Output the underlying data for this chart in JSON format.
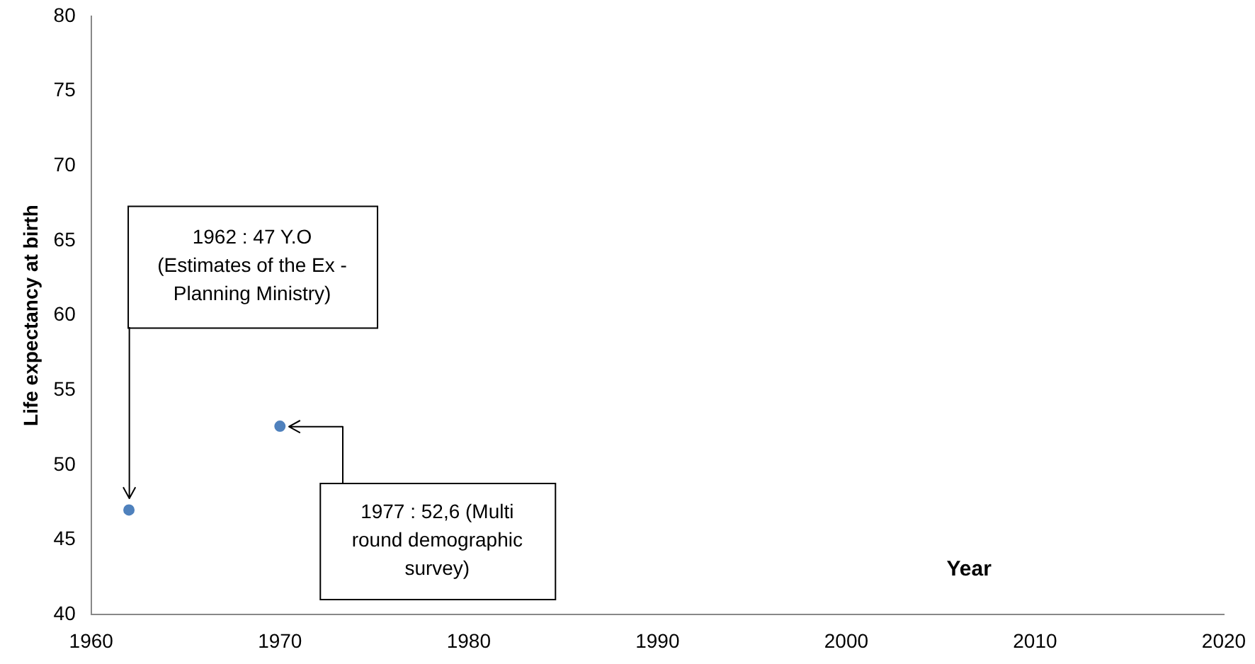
{
  "chart_data": {
    "type": "scatter",
    "ylabel": "Life expectancy at birth",
    "xlabel": "Year",
    "series": [
      {
        "color": "#4f81bd",
        "x": [
          1962,
          1970
        ],
        "values": [
          47,
          52.6
        ]
      }
    ],
    "xlim": [
      1960,
      2020
    ],
    "xticks": [
      1960,
      1970,
      1980,
      1990,
      2000,
      2010,
      2020
    ],
    "ylim": [
      40,
      80
    ],
    "yticks": [
      40,
      45,
      50,
      55,
      60,
      65,
      70,
      75,
      80
    ],
    "grid": false,
    "legend": false,
    "marker": "circle",
    "annotations": [
      "1962 : 47 Y.O (Estimates of the Ex - Planning Ministry)",
      {
        "text": "1977 : 52,6 (Multi round demographic survey)",
        "x": 1970,
        "y": 52.6
      }
    ]
  }
}
